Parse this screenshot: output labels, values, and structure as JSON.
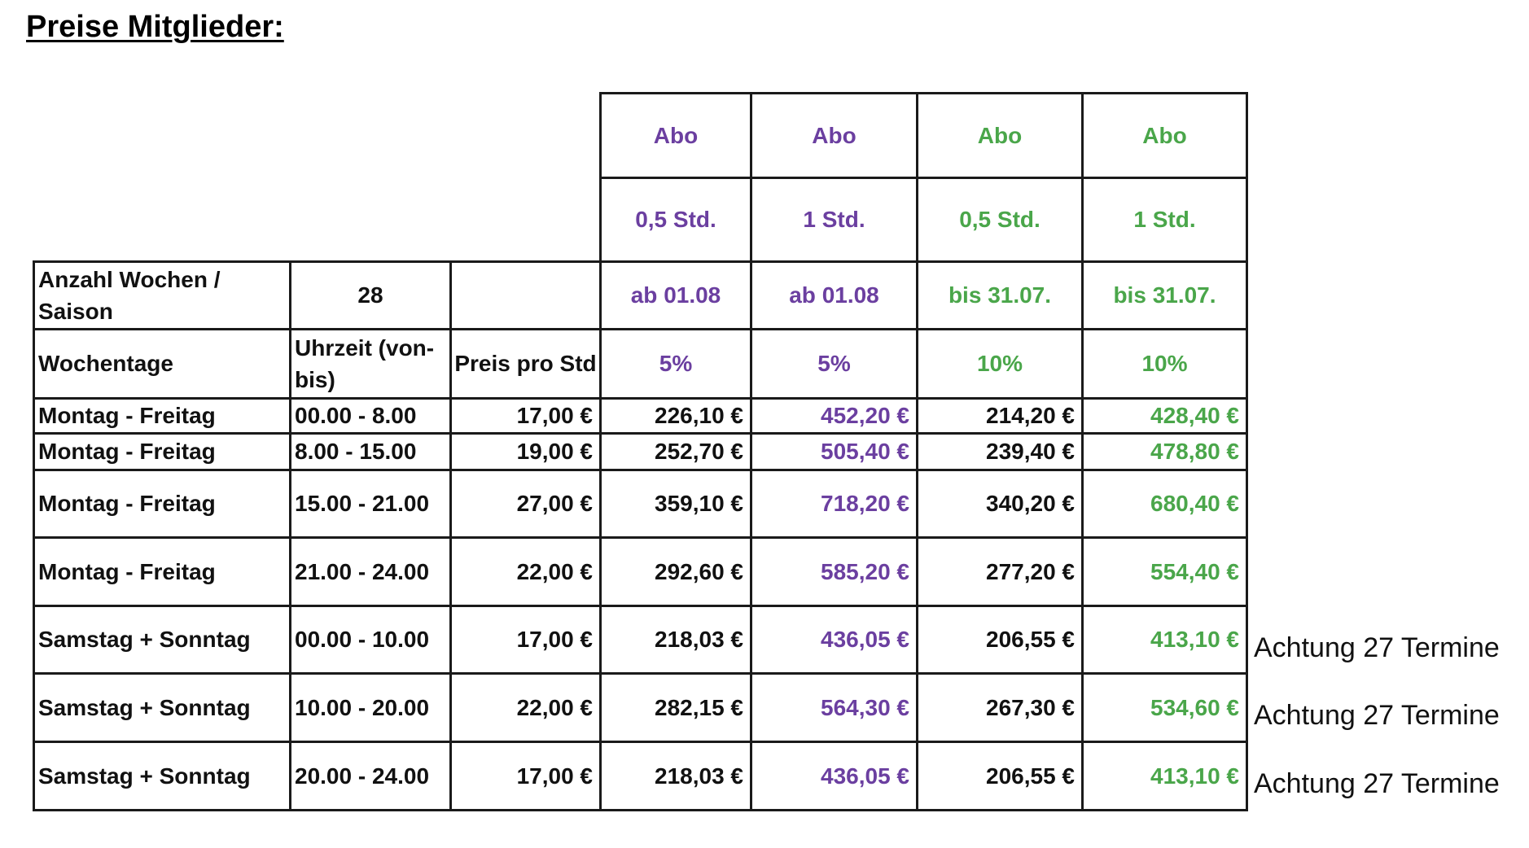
{
  "title": "Preise Mitglieder:",
  "colors": {
    "purple": "#6b3fa0",
    "green": "#4aa64a",
    "border": "#1a1a1a"
  },
  "header": {
    "abo": [
      "Abo",
      "Abo",
      "Abo",
      "Abo"
    ],
    "duration": [
      "0,5 Std.",
      "1 Std.",
      "0,5 Std.",
      "1 Std."
    ],
    "validity": [
      "ab 01.08",
      "ab 01.08",
      "bis 31.07.",
      "bis 31.07."
    ],
    "discount": [
      "5%",
      "5%",
      "10%",
      "10%"
    ]
  },
  "weeks": {
    "label": "Anzahl Wochen / Saison",
    "value": "28"
  },
  "columns": {
    "weekday": "Wochentage",
    "time": "Uhrzeit (von-bis)",
    "price": "Preis pro Std"
  },
  "rows": [
    {
      "day": "Montag - Freitag",
      "time": "00.00 - 8.00",
      "price": "17,00 €",
      "a": "226,10 €",
      "b": "452,20 €",
      "c": "214,20 €",
      "d": "428,40 €",
      "note": ""
    },
    {
      "day": "Montag - Freitag",
      "time": "8.00 - 15.00",
      "price": "19,00 €",
      "a": "252,70 €",
      "b": "505,40 €",
      "c": "239,40 €",
      "d": "478,80 €",
      "note": ""
    },
    {
      "day": "Montag - Freitag",
      "time": "15.00 - 21.00",
      "price": "27,00 €",
      "a": "359,10 €",
      "b": "718,20 €",
      "c": "340,20 €",
      "d": "680,40 €",
      "note": ""
    },
    {
      "day": "Montag - Freitag",
      "time": "21.00 - 24.00",
      "price": "22,00 €",
      "a": "292,60 €",
      "b": "585,20 €",
      "c": "277,20 €",
      "d": "554,40 €",
      "note": ""
    },
    {
      "day": "Samstag + Sonntag",
      "time": "00.00 - 10.00",
      "price": "17,00 €",
      "a": "218,03 €",
      "b": "436,05 €",
      "c": "206,55 €",
      "d": "413,10 €",
      "note": "Achtung 27 Termine"
    },
    {
      "day": "Samstag + Sonntag",
      "time": "10.00 - 20.00",
      "price": "22,00 €",
      "a": "282,15 €",
      "b": "564,30 €",
      "c": "267,30 €",
      "d": "534,60 €",
      "note": "Achtung 27 Termine"
    },
    {
      "day": "Samstag + Sonntag",
      "time": "20.00 - 24.00",
      "price": "17,00 €",
      "a": "218,03 €",
      "b": "436,05 €",
      "c": "206,55 €",
      "d": "413,10 €",
      "note": "Achtung 27 Termine"
    }
  ]
}
